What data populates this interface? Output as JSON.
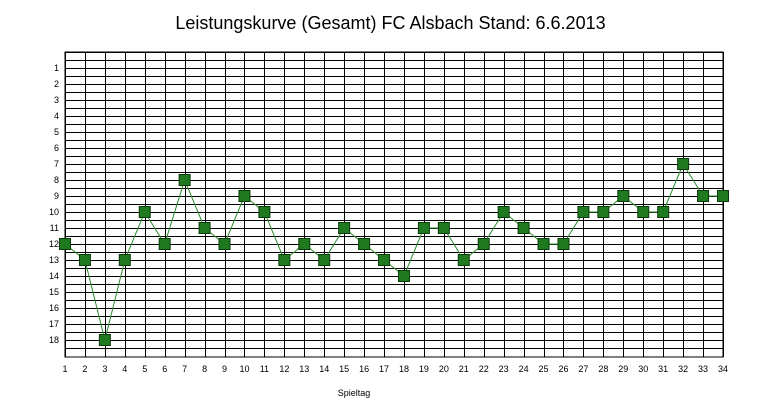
{
  "chart_data": {
    "type": "line",
    "title": "Leistungskurve (Gesamt) FC Alsbach Stand: 6.6.2013",
    "xlabel": "Spieltag",
    "ylabel": "",
    "x": [
      1,
      2,
      3,
      4,
      5,
      6,
      7,
      8,
      9,
      10,
      11,
      12,
      13,
      14,
      15,
      16,
      17,
      18,
      19,
      20,
      21,
      22,
      23,
      24,
      25,
      26,
      27,
      28,
      29,
      30,
      31,
      32,
      33,
      34
    ],
    "series": [
      {
        "values": [
          12,
          13,
          18,
          13,
          10,
          12,
          8,
          11,
          12,
          9,
          10,
          13,
          12,
          13,
          11,
          12,
          13,
          14,
          11,
          11,
          13,
          12,
          10,
          11,
          12,
          12,
          10,
          10,
          9,
          10,
          10,
          7,
          9,
          9
        ]
      }
    ],
    "xlim": [
      1,
      34
    ],
    "ylim": [
      1,
      18
    ],
    "y_inverted": true,
    "y_ticks": [
      "1",
      "2",
      "3",
      "4",
      "5",
      "6",
      "7",
      "8",
      "9",
      "10",
      "11",
      "12",
      "13",
      "14",
      "15",
      "16",
      "17",
      "18"
    ],
    "x_ticks": [
      "1",
      "2",
      "3",
      "4",
      "5",
      "6",
      "7",
      "8",
      "9",
      "10",
      "11",
      "12",
      "13",
      "14",
      "15",
      "16",
      "17",
      "18",
      "19",
      "20",
      "21",
      "22",
      "23",
      "24",
      "25",
      "26",
      "27",
      "28",
      "29",
      "30",
      "31",
      "32",
      "33",
      "34"
    ],
    "grid": true,
    "colors": {
      "line": "#2e8b2e",
      "marker_fill": "#1f7a1f",
      "marker_stroke": "#0a3a0a",
      "grid": "#000000"
    }
  }
}
